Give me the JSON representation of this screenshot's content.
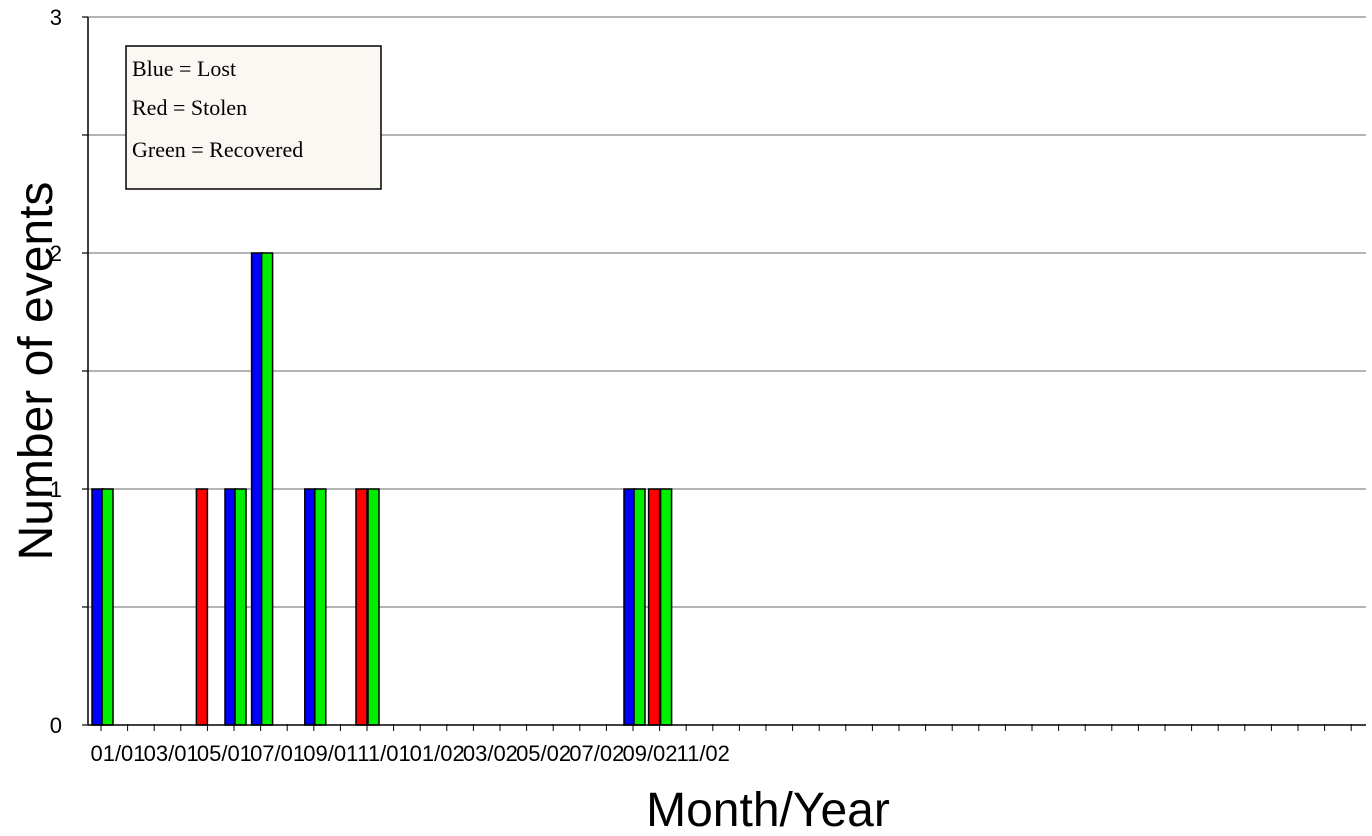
{
  "chart_data": {
    "type": "bar",
    "xlabel": "Month/Year",
    "ylabel": "Number of events",
    "ylim": [
      0,
      3
    ],
    "y_ticks": [
      0,
      1,
      2,
      3
    ],
    "y_tick_labels": [
      "0",
      "1",
      "2",
      "3"
    ],
    "grid": true,
    "x_tick_labels": [
      "01/01",
      "03/01",
      "05/01",
      "07/01",
      "09/01",
      "11/01",
      "01/02",
      "03/02",
      "05/02",
      "07/02",
      "09/02",
      "11/02"
    ],
    "legend": {
      "placement": "top-left",
      "entries": [
        "Blue = Lost",
        "Red = Stolen",
        "Green = Recovered"
      ]
    },
    "series": [
      {
        "label": "Lost",
        "color": "#0000ff"
      },
      {
        "label": "Stolen",
        "color": "#ff0000"
      },
      {
        "label": "Recovered",
        "color": "#00ee00"
      }
    ],
    "bars": [
      {
        "date": "2001-01",
        "series": "Lost",
        "value": 1
      },
      {
        "date": "2001-01",
        "series": "Recovered",
        "value": 1
      },
      {
        "date": "2001-05",
        "series": "Stolen",
        "value": 1
      },
      {
        "date": "2001-06",
        "series": "Lost",
        "value": 1
      },
      {
        "date": "2001-06",
        "series": "Recovered",
        "value": 1
      },
      {
        "date": "2001-07",
        "series": "Lost",
        "value": 2
      },
      {
        "date": "2001-07",
        "series": "Recovered",
        "value": 2
      },
      {
        "date": "2001-09",
        "series": "Lost",
        "value": 1
      },
      {
        "date": "2001-09",
        "series": "Recovered",
        "value": 1
      },
      {
        "date": "2001-11",
        "series": "Stolen",
        "value": 1
      },
      {
        "date": "2001-11",
        "series": "Recovered",
        "value": 1
      },
      {
        "date": "2002-09",
        "series": "Lost",
        "value": 1
      },
      {
        "date": "2002-09",
        "series": "Recovered",
        "value": 1
      },
      {
        "date": "2002-10",
        "series": "Stolen",
        "value": 1
      },
      {
        "date": "2002-10",
        "series": "Recovered",
        "value": 1
      }
    ]
  }
}
